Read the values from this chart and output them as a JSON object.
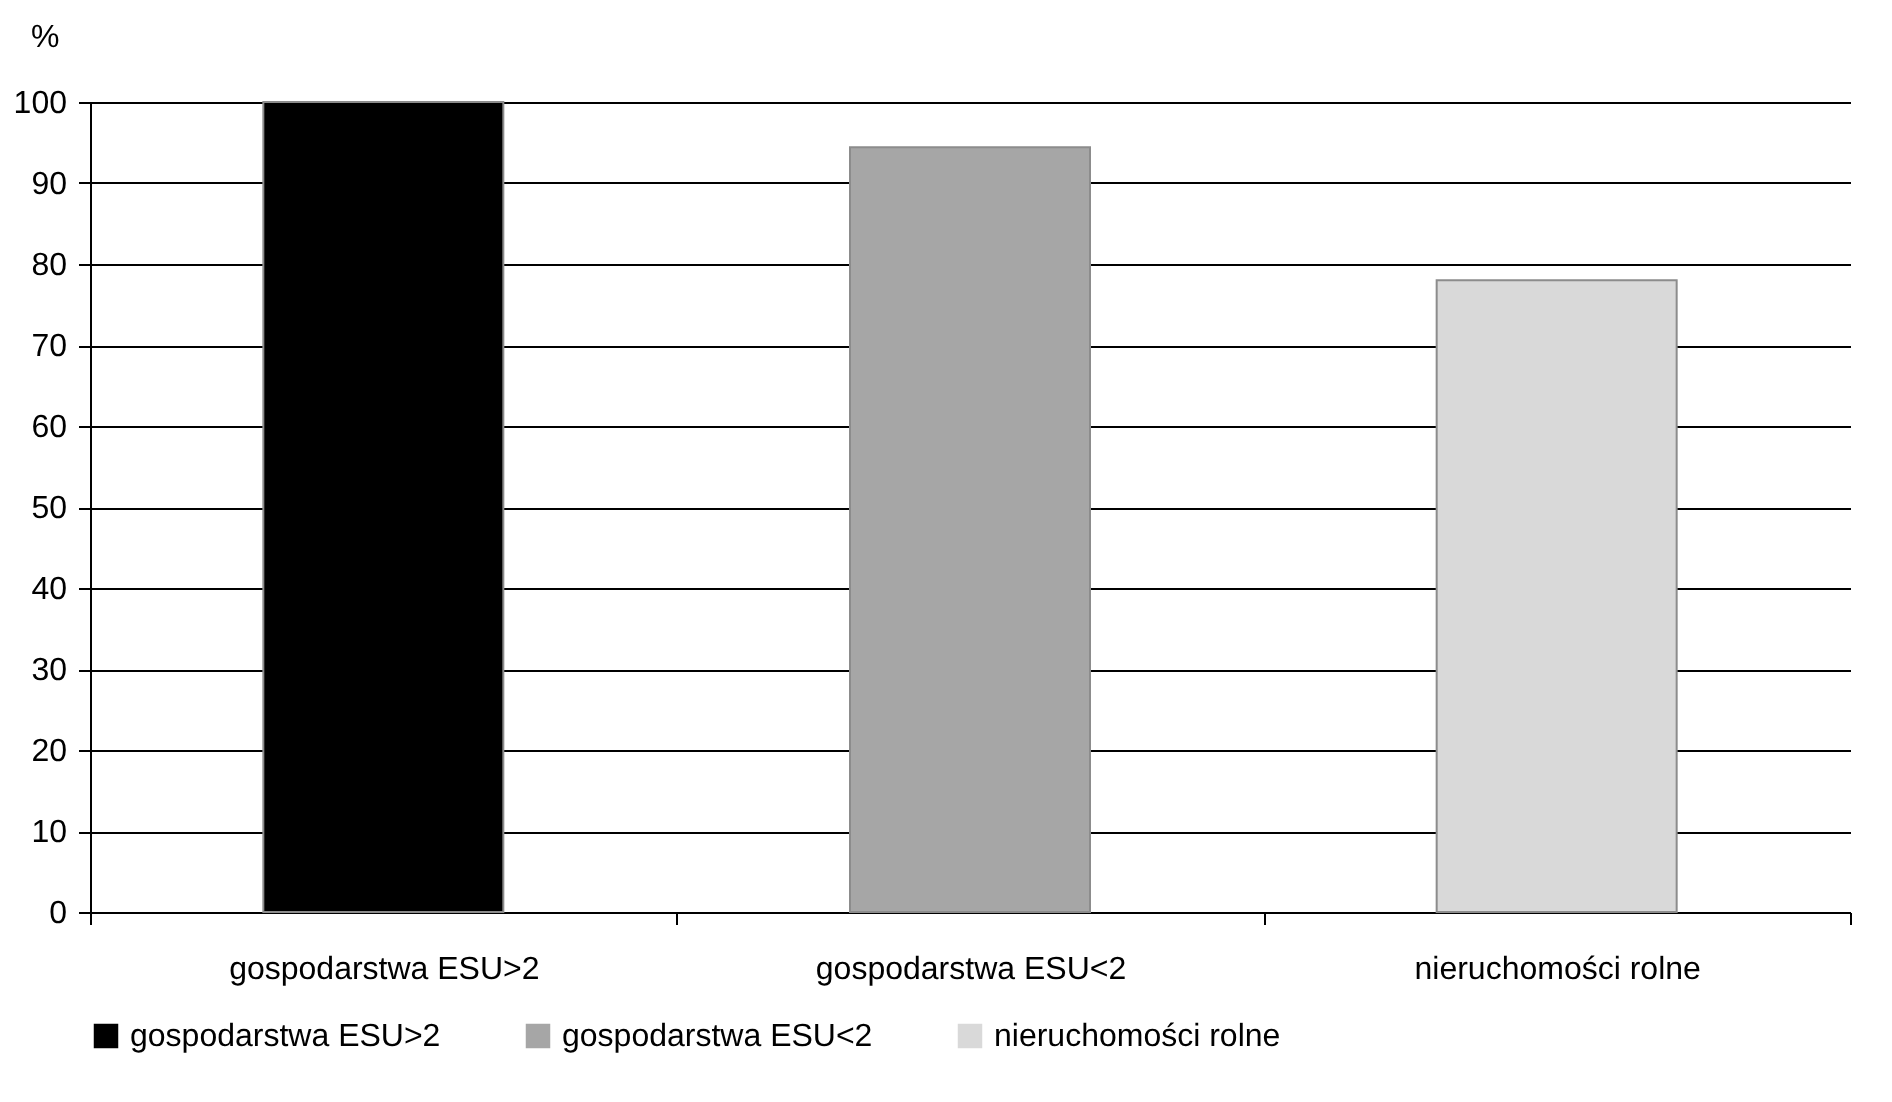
{
  "chart_data": {
    "type": "bar",
    "ylabel": "%",
    "categories": [
      "gospodarstwa ESU>2",
      "gospodarstwa ESU<2",
      "nieruchomości rolne"
    ],
    "series": [
      {
        "name": "gospodarstwa ESU>2",
        "color": "#000000",
        "values": [
          100,
          null,
          null
        ]
      },
      {
        "name": "gospodarstwa ESU<2",
        "color": "#a6a6a6",
        "values": [
          null,
          94.4,
          null
        ]
      },
      {
        "name": "nieruchomości rolne",
        "color": "#d9d9d9",
        "values": [
          null,
          null,
          78
        ]
      }
    ],
    "ylim": [
      0,
      100
    ],
    "yticks": [
      0,
      10,
      20,
      30,
      40,
      50,
      60,
      70,
      80,
      90,
      100
    ],
    "grid": "y",
    "legend": "bottom"
  }
}
